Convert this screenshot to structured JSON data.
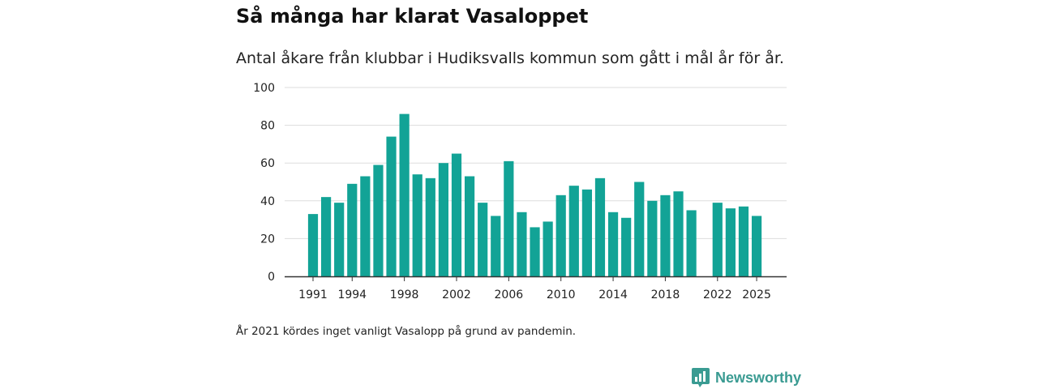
{
  "header": {
    "title": "Så många har klarat Vasaloppet",
    "subtitle": "Antal åkare från klubbar i Hudiksvalls kommun som gått i mål år för år."
  },
  "note": "År 2021 kördes inget vanligt Vasalopp på grund av pandemin.",
  "brand": {
    "name": "Newsworthy",
    "icon": "newsworthy-logo-icon",
    "color": "#3a9b92"
  },
  "chart_data": {
    "type": "bar",
    "categories": [
      "1991",
      "1992",
      "1993",
      "1994",
      "1995",
      "1996",
      "1997",
      "1998",
      "1999",
      "2000",
      "2001",
      "2002",
      "2003",
      "2004",
      "2005",
      "2006",
      "2007",
      "2008",
      "2009",
      "2010",
      "2011",
      "2012",
      "2013",
      "2014",
      "2015",
      "2016",
      "2017",
      "2018",
      "2019",
      "2020",
      "2021",
      "2022",
      "2023",
      "2024",
      "2025"
    ],
    "values": [
      33,
      42,
      39,
      49,
      53,
      59,
      74,
      86,
      54,
      52,
      60,
      65,
      53,
      39,
      32,
      61,
      34,
      26,
      29,
      43,
      48,
      46,
      52,
      34,
      31,
      50,
      40,
      43,
      45,
      35,
      null,
      39,
      36,
      37,
      32
    ],
    "x_tick_labels": [
      "1991",
      "1994",
      "1998",
      "2002",
      "2006",
      "2010",
      "2014",
      "2018",
      "2022",
      "2025"
    ],
    "y_ticks": [
      0,
      20,
      40,
      60,
      80,
      100
    ],
    "ylim": [
      0,
      100
    ],
    "title": "Så många har klarat Vasaloppet",
    "xlabel": "",
    "ylabel": "",
    "grid": true,
    "bar_color": "#12a396",
    "grid_color": "#dddddd",
    "axis_color": "#333333"
  }
}
